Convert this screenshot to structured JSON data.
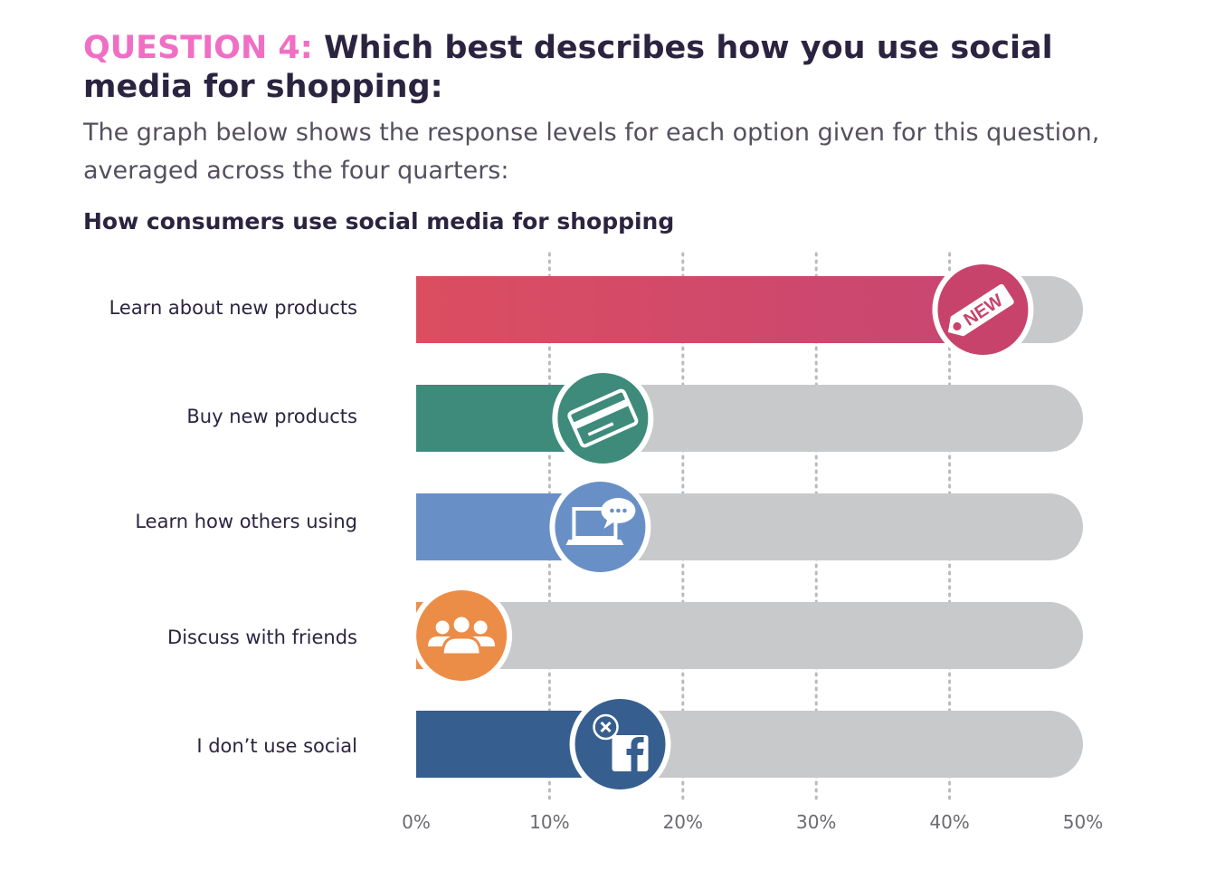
{
  "header": {
    "question_label": "QUESTION 4:",
    "question_text": " Which best describes how you use social media for shopping:",
    "description": "The graph below shows the response levels for each option given for this question, averaged across the four quarters:"
  },
  "colors": {
    "question_label": "#f06fc5",
    "track": "#c8c9cb",
    "learn_new": "#d94a63",
    "buy_new": "#3e8b7c",
    "learn_others": "#6990c6",
    "discuss": "#ec8d47",
    "dont_use": "#365f8f"
  },
  "chart_data": {
    "type": "bar",
    "orientation": "horizontal",
    "title": "How consumers use social media for shopping",
    "categories": [
      "Learn about new products",
      "Buy new products",
      "Learn how others using",
      "Discuss with friends",
      "I don’t use social"
    ],
    "values": [
      42.5,
      14,
      13.8,
      3.4,
      15.3
    ],
    "xlim": [
      0,
      50
    ],
    "x_ticks": [
      "0%",
      "10%",
      "20%",
      "30%",
      "40%",
      "50%"
    ],
    "grid": "vertical dotted",
    "bar_colors": [
      "#d94a63",
      "#3e8b7c",
      "#6990c6",
      "#ec8d47",
      "#365f8f"
    ],
    "icons": [
      "new-tag-icon",
      "credit-card-icon",
      "laptop-chat-icon",
      "group-people-icon",
      "facebook-cross-icon"
    ]
  }
}
